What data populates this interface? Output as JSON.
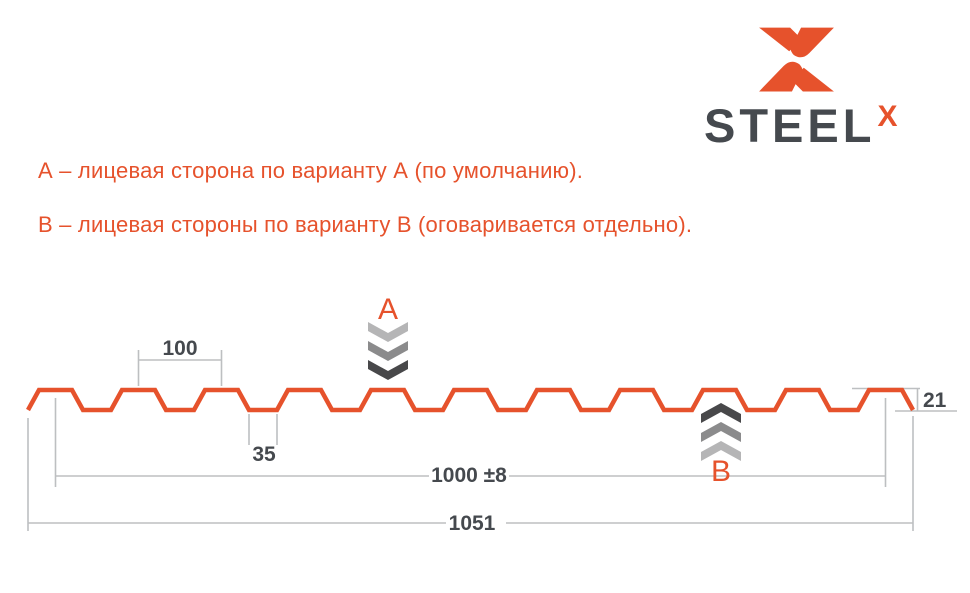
{
  "brand": {
    "name": "STEEL",
    "mark": "X"
  },
  "legend": {
    "line_a": "А – лицевая сторона по варианту А (по умолчанию).",
    "line_b": "В – лицевая стороны по варианту В (оговаривается отдельно)."
  },
  "markers": {
    "top_side": "А",
    "bottom_side": "В"
  },
  "dimensions": {
    "wave_pitch": "100",
    "rib_width": "35",
    "working_width": "1000 ±8",
    "overall_width": "1051",
    "profile_height": "21"
  },
  "colors": {
    "accent": "#e6522c",
    "dimension_line": "#bdbfc1",
    "dimension_text": "#45494e",
    "chevron_light": "#b5b5b6",
    "chevron_mid": "#8b8b8c",
    "chevron_dark": "#48484a"
  }
}
